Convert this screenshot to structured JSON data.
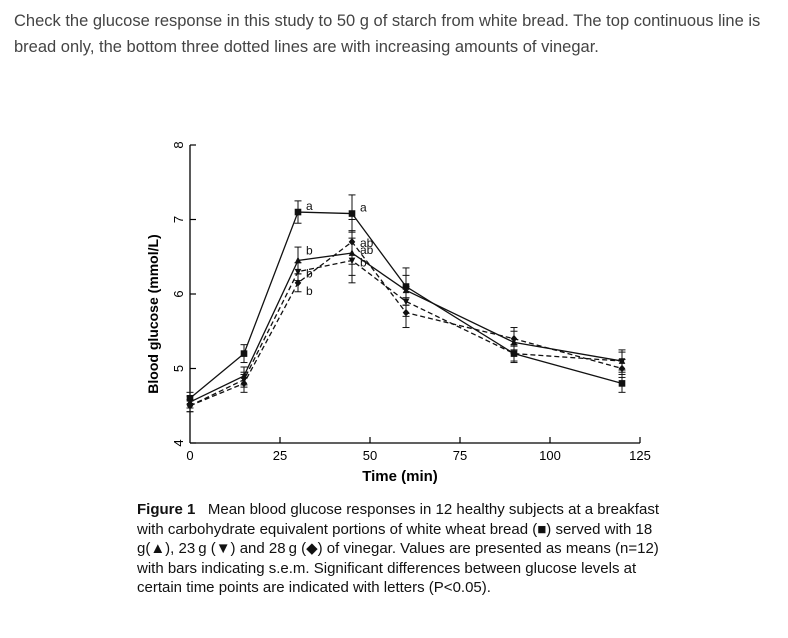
{
  "intro_text": "Check the glucose response in this study to 50 g of starch from white bread. The top continuous line is bread only, the bottom three dotted lines are with increasing amounts of vinegar.",
  "caption": {
    "label": "Figure 1",
    "text": "Mean blood glucose responses in 12 healthy subjects at a breakfast with carbohydrate equivalent portions of white wheat bread (■) served with 18 g(▲), 23 g (▼) and 28 g (◆) of vinegar. Values are presented as means (n=12) with bars indicating s.e.m. Significant differences between glucose levels at certain time points are indicated with letters (P<0.05)."
  },
  "chart_data": {
    "type": "line",
    "xlabel": "Time (min)",
    "ylabel": "Blood glucose (mmol/L)",
    "xlim": [
      0,
      125
    ],
    "ylim": [
      4,
      8
    ],
    "xticks": [
      "0",
      "25",
      "50",
      "75",
      "100",
      "125"
    ],
    "yticks": [
      "4",
      "5",
      "6",
      "7",
      "8"
    ],
    "grid": false,
    "x": [
      0,
      15,
      30,
      45,
      60,
      90,
      120
    ],
    "series": [
      {
        "marker": "square",
        "line": "solid",
        "values": [
          4.6,
          5.2,
          7.1,
          7.08,
          6.1,
          5.2,
          4.8
        ],
        "errors": [
          0.08,
          0.12,
          0.15,
          0.25,
          0.25,
          0.12,
          0.12
        ],
        "labels": [
          null,
          null,
          "a",
          "a",
          null,
          null,
          null
        ]
      },
      {
        "marker": "triangle-up",
        "line": "solid",
        "values": [
          4.55,
          4.9,
          6.45,
          6.55,
          6.05,
          5.35,
          5.1
        ],
        "errors": [
          0.08,
          0.12,
          0.18,
          0.3,
          0.2,
          0.15,
          0.12
        ],
        "labels": [
          null,
          null,
          "b",
          "ab",
          null,
          null,
          null
        ]
      },
      {
        "marker": "triangle-down",
        "line": "dashed",
        "values": [
          4.5,
          4.85,
          6.3,
          6.45,
          5.9,
          5.2,
          5.1
        ],
        "errors": [
          0.08,
          0.1,
          0.12,
          0.3,
          0.2,
          0.1,
          0.15
        ],
        "labels": [
          null,
          null,
          "b",
          "b",
          null,
          null,
          null
        ]
      },
      {
        "marker": "diamond",
        "line": "dashed",
        "values": [
          4.5,
          4.8,
          6.15,
          6.7,
          5.75,
          5.4,
          5.0
        ],
        "errors": [
          0.08,
          0.12,
          0.12,
          0.3,
          0.2,
          0.15,
          0.12
        ],
        "labels": [
          null,
          null,
          "b",
          "ab",
          null,
          null,
          null
        ]
      }
    ]
  }
}
